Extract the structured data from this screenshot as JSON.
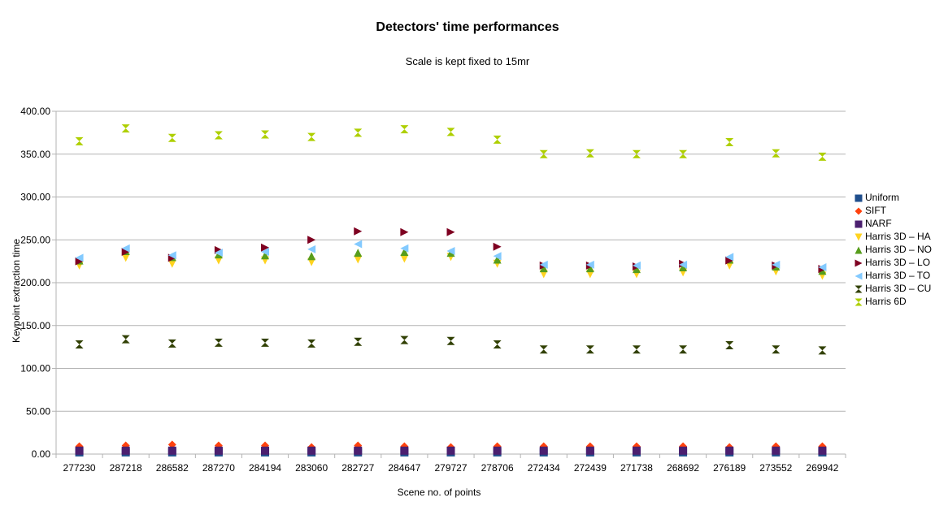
{
  "chart_data": {
    "type": "scatter",
    "title": "Detectors' time performances",
    "subtitle": "Scale is kept fixed to 15mr",
    "xlabel": "Scene no. of points",
    "ylabel": "Keypoint extraction time",
    "categories": [
      "277230",
      "287218",
      "286582",
      "287270",
      "284194",
      "283060",
      "282727",
      "284647",
      "279727",
      "278706",
      "272434",
      "272439",
      "271738",
      "268692",
      "276189",
      "273552",
      "269942"
    ],
    "ylim": [
      0,
      400
    ],
    "yticks": [
      "0.00",
      "50.00",
      "100.00",
      "150.00",
      "200.00",
      "250.00",
      "300.00",
      "350.00",
      "400.00"
    ],
    "grid": true,
    "legend_position": "right",
    "series": [
      {
        "name": "Uniform",
        "color": "#1f4e8c",
        "marker": "square",
        "values": [
          2,
          2,
          2,
          2,
          2,
          2,
          2,
          2,
          2,
          2,
          2,
          2,
          2,
          2,
          2,
          2,
          2
        ]
      },
      {
        "name": "SIFT",
        "color": "#ff420e",
        "marker": "diamond",
        "values": [
          9,
          10,
          11,
          10,
          10,
          8,
          10,
          9,
          8,
          9,
          9,
          9,
          9,
          9,
          8,
          9,
          9
        ]
      },
      {
        "name": "NARF",
        "color": "#4b1f6f",
        "marker": "square",
        "values": [
          4,
          4,
          4,
          4,
          4,
          4,
          4,
          4,
          4,
          4,
          4,
          4,
          4,
          4,
          4,
          4,
          4
        ]
      },
      {
        "name": "Harris 3D – HA",
        "color": "#ffd320",
        "marker": "triangle-down",
        "values": [
          220,
          229,
          222,
          226,
          226,
          224,
          227,
          228,
          230,
          222,
          210,
          210,
          210,
          212,
          220,
          213,
          208
        ]
      },
      {
        "name": "Harris 3D – NO",
        "color": "#579d1c",
        "marker": "triangle-up",
        "values": [
          226,
          237,
          230,
          233,
          232,
          231,
          235,
          236,
          235,
          227,
          217,
          217,
          216,
          218,
          227,
          219,
          214
        ]
      },
      {
        "name": "Harris 3D – LO",
        "color": "#7e0021",
        "marker": "triangle-right",
        "values": [
          225,
          236,
          229,
          238,
          241,
          250,
          260,
          259,
          259,
          242,
          220,
          220,
          219,
          222,
          226,
          220,
          216
        ]
      },
      {
        "name": "Harris 3D – TO",
        "color": "#83caff",
        "marker": "triangle-left",
        "values": [
          229,
          240,
          232,
          235,
          236,
          239,
          245,
          240,
          237,
          231,
          221,
          221,
          220,
          221,
          230,
          221,
          218
        ]
      },
      {
        "name": "Harris 3D – CU",
        "color": "#314004",
        "marker": "bowtie",
        "values": [
          128,
          134,
          129,
          130,
          130,
          129,
          131,
          133,
          132,
          128,
          122,
          122,
          122,
          122,
          127,
          122,
          121
        ]
      },
      {
        "name": "Harris 6D",
        "color": "#aecf00",
        "marker": "hourglass",
        "values": [
          365,
          380,
          369,
          372,
          373,
          370,
          375,
          379,
          376,
          367,
          350,
          351,
          350,
          350,
          364,
          351,
          347
        ]
      }
    ]
  }
}
